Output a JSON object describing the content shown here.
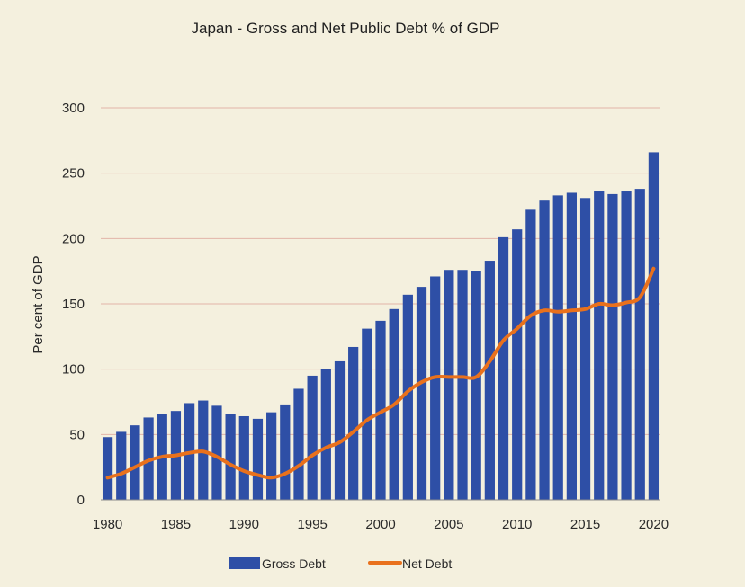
{
  "chart_data": {
    "type": "bar",
    "title": "Japan - Gross and Net Public Debt % of GDP",
    "xlabel": "",
    "ylabel": "Per cent of GDP",
    "ylim": [
      0,
      300
    ],
    "yticks": [
      0,
      50,
      100,
      150,
      200,
      250,
      300
    ],
    "xticks": [
      1980,
      1985,
      1990,
      1995,
      2000,
      2005,
      2010,
      2015,
      2020
    ],
    "grid": true,
    "legend_position": "bottom",
    "x": [
      1980,
      1981,
      1982,
      1983,
      1984,
      1985,
      1986,
      1987,
      1988,
      1989,
      1990,
      1991,
      1992,
      1993,
      1994,
      1995,
      1996,
      1997,
      1998,
      1999,
      2000,
      2001,
      2002,
      2003,
      2004,
      2005,
      2006,
      2007,
      2008,
      2009,
      2010,
      2011,
      2012,
      2013,
      2014,
      2015,
      2016,
      2017,
      2018,
      2019,
      2020
    ],
    "series": [
      {
        "name": "Gross Debt",
        "type": "bar",
        "color": "#2e4fa6",
        "values": [
          48,
          52,
          57,
          63,
          66,
          68,
          74,
          76,
          72,
          66,
          64,
          62,
          67,
          73,
          85,
          95,
          100,
          106,
          117,
          131,
          137,
          146,
          157,
          163,
          171,
          176,
          176,
          175,
          183,
          201,
          207,
          222,
          229,
          233,
          235,
          231,
          236,
          234,
          236,
          238,
          266
        ]
      },
      {
        "name": "Net Debt",
        "type": "line",
        "color": "#e9711c",
        "values": [
          17,
          20,
          25,
          30,
          33,
          34,
          36,
          37,
          33,
          27,
          22,
          19,
          17,
          20,
          26,
          34,
          40,
          44,
          52,
          61,
          67,
          73,
          83,
          90,
          94,
          94,
          94,
          94,
          106,
          122,
          131,
          141,
          145,
          144,
          145,
          146,
          150,
          149,
          151,
          155,
          177
        ]
      }
    ]
  }
}
